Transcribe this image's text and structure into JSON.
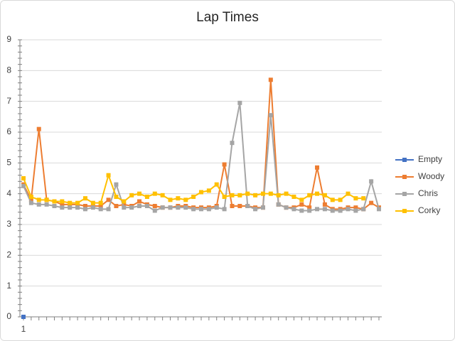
{
  "chart_data": {
    "type": "line",
    "title": "Lap Times",
    "categories": [
      "1",
      null,
      null,
      null,
      null,
      null,
      null,
      null,
      null,
      null,
      null,
      null,
      null,
      null,
      null,
      null,
      null,
      null,
      null,
      null,
      null,
      null,
      null,
      null,
      null,
      null,
      null,
      null,
      null,
      null,
      null,
      null,
      null,
      null,
      null,
      null,
      null,
      null,
      null,
      null,
      null,
      null,
      null,
      null,
      null,
      null,
      null
    ],
    "series": [
      {
        "name": "Empty",
        "color": "#4472c4",
        "values": [
          0,
          null,
          null,
          null,
          null,
          null,
          null,
          null,
          null,
          null,
          null,
          null,
          null,
          null,
          null,
          null,
          null,
          null,
          null,
          null,
          null,
          null,
          null,
          null,
          null,
          null,
          null,
          null,
          null,
          null,
          null,
          null,
          null,
          null,
          null,
          null,
          null,
          null,
          null,
          null,
          null,
          null,
          null,
          null,
          null,
          null,
          null
        ]
      },
      {
        "name": "Woody",
        "color": "#ed7d31",
        "values": [
          4.3,
          3.8,
          6.1,
          3.8,
          3.75,
          3.65,
          3.65,
          3.65,
          3.6,
          3.6,
          3.6,
          3.8,
          3.6,
          3.65,
          3.6,
          3.75,
          3.65,
          3.6,
          3.55,
          3.55,
          3.6,
          3.6,
          3.55,
          3.55,
          3.55,
          3.6,
          4.95,
          3.6,
          3.6,
          3.6,
          3.55,
          3.55,
          7.7,
          3.65,
          3.55,
          3.55,
          3.65,
          3.55,
          4.85,
          3.65,
          3.5,
          3.5,
          3.55,
          3.55,
          3.5,
          3.7,
          3.55
        ]
      },
      {
        "name": "Chris",
        "color": "#a5a5a5",
        "values": [
          4.25,
          3.7,
          3.65,
          3.65,
          3.6,
          3.55,
          3.55,
          3.55,
          3.5,
          3.55,
          3.5,
          3.5,
          4.3,
          3.55,
          3.55,
          3.6,
          3.6,
          3.45,
          3.55,
          3.55,
          3.55,
          3.55,
          3.5,
          3.5,
          3.5,
          3.55,
          3.5,
          5.65,
          6.95,
          3.6,
          3.5,
          3.55,
          6.55,
          3.65,
          3.55,
          3.5,
          3.45,
          3.45,
          3.5,
          3.5,
          3.45,
          3.45,
          3.5,
          3.45,
          3.5,
          4.4,
          3.5
        ]
      },
      {
        "name": "Corky",
        "color": "#ffc000",
        "values": [
          4.5,
          3.9,
          3.8,
          3.8,
          3.75,
          3.75,
          3.7,
          3.7,
          3.85,
          3.7,
          3.7,
          4.6,
          3.9,
          3.75,
          3.95,
          4.0,
          3.9,
          4.0,
          3.95,
          3.8,
          3.85,
          3.8,
          3.9,
          4.05,
          4.1,
          4.3,
          3.9,
          3.95,
          3.95,
          4.0,
          3.95,
          4.0,
          4.0,
          3.95,
          4.0,
          3.9,
          3.8,
          3.95,
          4.0,
          3.95,
          3.8,
          3.8,
          4.0,
          3.85,
          3.85,
          null,
          null
        ]
      }
    ],
    "ylim": [
      0,
      9
    ],
    "yticks": [
      0,
      1,
      2,
      3,
      4,
      5,
      6,
      7,
      8,
      9
    ],
    "grid": true,
    "legend": "right"
  }
}
